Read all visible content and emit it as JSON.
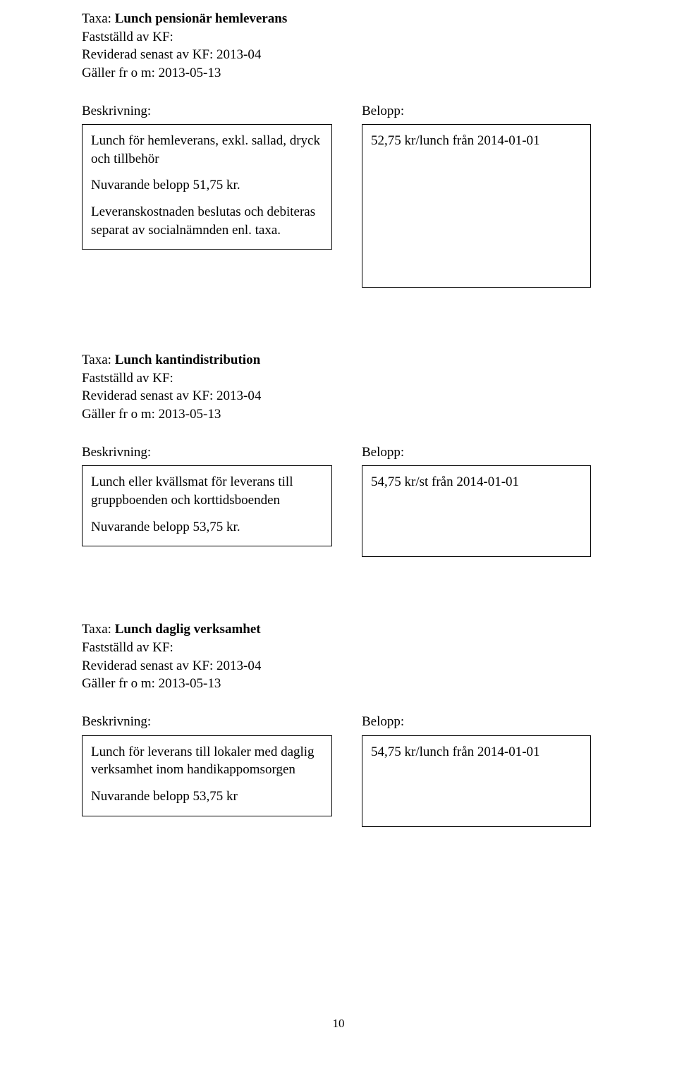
{
  "pageNumber": "10",
  "sections": [
    {
      "title_prefix": "Taxa: ",
      "title_bold": "Lunch pensionär hemleverans",
      "meta": [
        "Fastställd av KF:",
        "Reviderad senast av KF: 2013-04",
        "Gäller fr o m: 2013-05-13"
      ],
      "left_label": "Beskrivning:",
      "right_label": "Belopp:",
      "left_box_paragraphs": [
        "Lunch för hemleverans, exkl. sallad, dryck och tillbehör",
        "Nuvarande belopp 51,75 kr.",
        "Leveranskostnaden beslutas och debiteras separat av socialnämnden enl. taxa."
      ],
      "right_box_text": "52,75 kr/lunch från 2014-01-01",
      "right_box_class": "box-right-tall"
    },
    {
      "title_prefix": "Taxa: ",
      "title_bold": "Lunch kantindistribution",
      "meta": [
        "Fastställd av KF:",
        "Reviderad senast av KF: 2013-04",
        "Gäller fr o m: 2013-05-13"
      ],
      "left_label": "Beskrivning:",
      "right_label": "Belopp:",
      "left_box_paragraphs": [
        "Lunch eller kvällsmat för leverans till gruppboenden och korttidsboenden",
        "Nuvarande belopp 53,75 kr."
      ],
      "right_box_text": "54,75 kr/st från 2014-01-01",
      "right_box_class": "box-right-med"
    },
    {
      "title_prefix": "Taxa: ",
      "title_bold": "Lunch daglig verksamhet",
      "meta": [
        "Fastställd av KF:",
        "Reviderad senast av KF: 2013-04",
        "Gäller fr o m:  2013-05-13"
      ],
      "left_label": "Beskrivning:",
      "right_label": "Belopp:",
      "left_box_paragraphs": [
        "Lunch för leverans till lokaler med daglig verksamhet inom handikappomsorgen",
        "Nuvarande belopp 53,75 kr"
      ],
      "right_box_text": "54,75 kr/lunch från 2014-01-01",
      "right_box_class": "box-right-med2"
    }
  ]
}
